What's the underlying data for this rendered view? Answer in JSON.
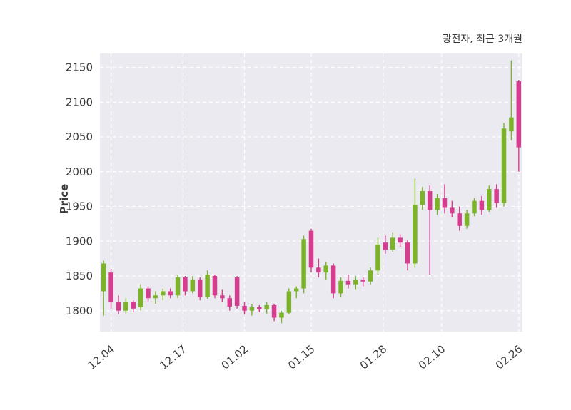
{
  "header": {
    "title": "광전자, 최근 3개월"
  },
  "chart_data": {
    "type": "candlestick",
    "title": "광전자, 최근 3개월",
    "ylabel": "Price",
    "ylim": [
      1770,
      2170
    ],
    "yticks": [
      1800,
      1850,
      1900,
      1950,
      2000,
      2050,
      2100,
      2150
    ],
    "xticks": [
      {
        "label": "12.04",
        "index": 1
      },
      {
        "label": "12.17",
        "index": 10.7
      },
      {
        "label": "01.02",
        "index": 19
      },
      {
        "label": "01.15",
        "index": 28
      },
      {
        "label": "01.28",
        "index": 37.7
      },
      {
        "label": "02.10",
        "index": 45.6
      },
      {
        "label": "02.26",
        "index": 56
      }
    ],
    "grid": "dashed-white-both-axes",
    "plot_bg": "#eaeaf0",
    "up_color": "#7cb32b",
    "down_color": "#d53e8e",
    "text_color": "#3a3a3a",
    "columns": [
      "date",
      "open",
      "high",
      "low",
      "close"
    ],
    "candles": [
      [
        "12.01",
        1828,
        1872,
        1793,
        1868
      ],
      [
        "12.04",
        1855,
        1860,
        1803,
        1812
      ],
      [
        "12.05",
        1812,
        1822,
        1795,
        1800
      ],
      [
        "12.06",
        1800,
        1818,
        1796,
        1812
      ],
      [
        "12.07",
        1812,
        1815,
        1798,
        1803
      ],
      [
        "12.08",
        1805,
        1838,
        1800,
        1832
      ],
      [
        "12.11",
        1832,
        1835,
        1812,
        1818
      ],
      [
        "12.12",
        1818,
        1828,
        1810,
        1822
      ],
      [
        "12.13",
        1822,
        1832,
        1815,
        1828
      ],
      [
        "12.14",
        1828,
        1832,
        1818,
        1822
      ],
      [
        "12.15",
        1822,
        1852,
        1818,
        1848
      ],
      [
        "12.18",
        1848,
        1850,
        1822,
        1828
      ],
      [
        "12.19",
        1828,
        1850,
        1825,
        1845
      ],
      [
        "12.20",
        1845,
        1848,
        1815,
        1820
      ],
      [
        "12.21",
        1820,
        1858,
        1817,
        1852
      ],
      [
        "12.22",
        1850,
        1852,
        1818,
        1822
      ],
      [
        "12.26",
        1822,
        1830,
        1812,
        1818
      ],
      [
        "12.27",
        1818,
        1822,
        1800,
        1806
      ],
      [
        "12.28",
        1848,
        1850,
        1803,
        1807
      ],
      [
        "01.02",
        1807,
        1812,
        1795,
        1800
      ],
      [
        "01.03",
        1800,
        1810,
        1793,
        1805
      ],
      [
        "01.04",
        1805,
        1808,
        1798,
        1802
      ],
      [
        "01.05",
        1802,
        1812,
        1796,
        1808
      ],
      [
        "01.08",
        1808,
        1810,
        1785,
        1790
      ],
      [
        "01.09",
        1790,
        1800,
        1782,
        1797
      ],
      [
        "01.10",
        1797,
        1832,
        1795,
        1828
      ],
      [
        "01.11",
        1828,
        1835,
        1818,
        1832
      ],
      [
        "01.12",
        1832,
        1908,
        1825,
        1903
      ],
      [
        "01.15",
        1915,
        1918,
        1855,
        1862
      ],
      [
        "01.16",
        1862,
        1875,
        1848,
        1855
      ],
      [
        "01.17",
        1855,
        1870,
        1845,
        1865
      ],
      [
        "01.18",
        1865,
        1868,
        1818,
        1825
      ],
      [
        "01.19",
        1825,
        1848,
        1820,
        1843
      ],
      [
        "01.22",
        1843,
        1852,
        1832,
        1838
      ],
      [
        "01.23",
        1838,
        1850,
        1830,
        1845
      ],
      [
        "01.24",
        1845,
        1848,
        1835,
        1842
      ],
      [
        "01.25",
        1842,
        1862,
        1838,
        1858
      ],
      [
        "01.26",
        1858,
        1905,
        1852,
        1895
      ],
      [
        "01.29",
        1898,
        1908,
        1882,
        1888
      ],
      [
        "01.30",
        1888,
        1912,
        1885,
        1905
      ],
      [
        "01.31",
        1905,
        1910,
        1892,
        1898
      ],
      [
        "02.01",
        1898,
        1902,
        1858,
        1868
      ],
      [
        "02.02",
        1868,
        1990,
        1862,
        1952
      ],
      [
        "02.05",
        1952,
        1978,
        1945,
        1972
      ],
      [
        "02.06",
        1972,
        1980,
        1852,
        1945
      ],
      [
        "02.07",
        1945,
        1968,
        1938,
        1962
      ],
      [
        "02.08",
        1962,
        1982,
        1940,
        1948
      ],
      [
        "02.13",
        1948,
        1958,
        1935,
        1940
      ],
      [
        "02.14",
        1940,
        1950,
        1915,
        1922
      ],
      [
        "02.15",
        1922,
        1945,
        1918,
        1940
      ],
      [
        "02.16",
        1940,
        1962,
        1936,
        1958
      ],
      [
        "02.19",
        1958,
        1965,
        1938,
        1945
      ],
      [
        "02.20",
        1945,
        1980,
        1942,
        1975
      ],
      [
        "02.21",
        1975,
        1982,
        1948,
        1955
      ],
      [
        "02.22",
        1955,
        2070,
        1950,
        2062
      ],
      [
        "02.23",
        2058,
        2160,
        2045,
        2078
      ],
      [
        "02.26",
        2130,
        2132,
        2000,
        2035
      ]
    ]
  }
}
